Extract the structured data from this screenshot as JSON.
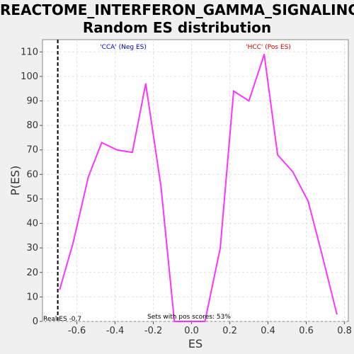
{
  "title_line1": "REACTOME_INTERFERON_GAMMA_SIGNALING:",
  "title_line2": "Random ES distribution",
  "chart_data": {
    "type": "line",
    "xlabel": "ES",
    "ylabel": "P(ES)",
    "xlim": [
      -0.78,
      0.82
    ],
    "ylim": [
      0,
      115
    ],
    "xticks": [
      -0.6,
      -0.4,
      -0.2,
      0.0,
      0.2,
      0.4,
      0.6,
      0.8
    ],
    "xtick_labels": [
      "-0.6",
      "-0.4",
      "-0.2",
      "0.0",
      "0.2",
      "0.4",
      "0.6",
      "0.8"
    ],
    "yticks": [
      0,
      10,
      20,
      30,
      40,
      50,
      60,
      70,
      80,
      90,
      100,
      110
    ],
    "grid": true,
    "line_color": "#ff33ff",
    "series": [
      {
        "x": [
          -0.69,
          -0.62,
          -0.54,
          -0.47,
          -0.39,
          -0.31,
          -0.24,
          -0.16,
          -0.09,
          -0.01,
          0.07,
          0.15,
          0.22,
          0.3,
          0.38,
          0.45,
          0.53,
          0.61,
          0.68,
          0.76
        ],
        "y": [
          13,
          32,
          59,
          73,
          70,
          69,
          97,
          55,
          0,
          0,
          0,
          30,
          94,
          90,
          109,
          68,
          61,
          49,
          28,
          3
        ]
      }
    ],
    "real_es": -0.7,
    "real_es_label": "Real ES -0.7",
    "neg_label": "'CCA' (Neg ES)",
    "pos_label": "'HCC' (Pos ES)",
    "neg_label_color": "#0000cc",
    "pos_label_color": "#cc0000",
    "footer_note": "Sets with pos scores: 53%"
  }
}
